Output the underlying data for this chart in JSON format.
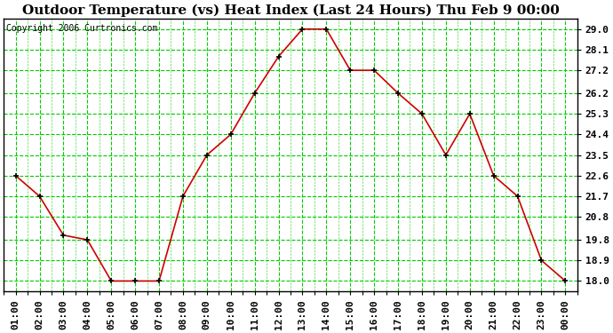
{
  "title": "Outdoor Temperature (vs) Heat Index (Last 24 Hours) Thu Feb 9 00:00",
  "copyright": "Copyright 2006 Curtronics.com",
  "x_labels": [
    "01:00",
    "02:00",
    "03:00",
    "04:00",
    "05:00",
    "06:00",
    "07:00",
    "08:00",
    "09:00",
    "10:00",
    "11:00",
    "12:00",
    "13:00",
    "14:00",
    "15:00",
    "16:00",
    "17:00",
    "18:00",
    "19:00",
    "20:00",
    "21:00",
    "22:00",
    "23:00",
    "00:00"
  ],
  "y_values": [
    22.6,
    21.7,
    20.0,
    19.8,
    18.0,
    18.0,
    18.0,
    21.7,
    23.5,
    24.4,
    26.2,
    27.8,
    29.0,
    29.0,
    27.2,
    27.2,
    26.2,
    25.3,
    23.5,
    25.3,
    22.6,
    21.7,
    18.9,
    18.0
  ],
  "line_color": "#cc0000",
  "marker_color": "#000000",
  "background_color": "#ffffff",
  "plot_bg_color": "#ffffff",
  "grid_color": "#00cc00",
  "y_tick_labels": [
    "18.0",
    "18.9",
    "19.8",
    "20.8",
    "21.7",
    "22.6",
    "23.5",
    "24.4",
    "25.3",
    "26.2",
    "27.2",
    "28.1",
    "29.0"
  ],
  "y_tick_values": [
    18.0,
    18.9,
    19.8,
    20.8,
    21.7,
    22.6,
    23.5,
    24.4,
    25.3,
    26.2,
    27.2,
    28.1,
    29.0
  ],
  "ylim": [
    17.55,
    29.45
  ],
  "title_fontsize": 11,
  "copyright_fontsize": 7,
  "tick_fontsize": 8,
  "border_color": "#000000"
}
